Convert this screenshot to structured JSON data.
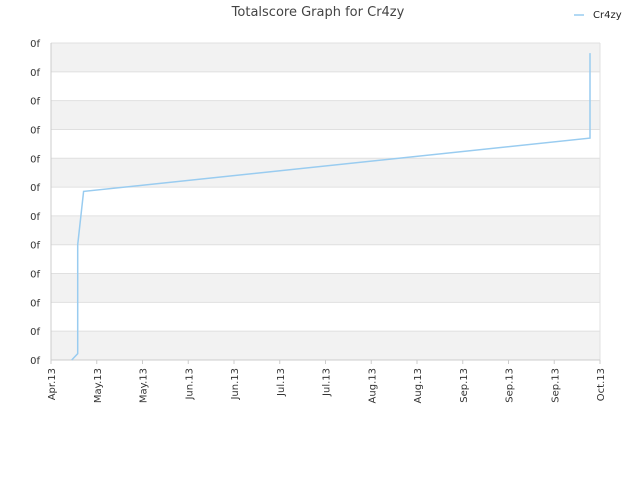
{
  "chart_data": {
    "type": "line",
    "title": "Totalscore Graph for Cr4zy",
    "xlabel": "",
    "ylabel": "",
    "y_tick_labels": [
      "0f",
      "0f",
      "0f",
      "0f",
      "0f",
      "0f",
      "0f",
      "0f",
      "0f",
      "0f",
      "0f",
      "0f"
    ],
    "x_tick_labels": [
      "Apr.13",
      "May.13",
      "May.13",
      "Jun.13",
      "Jun.13",
      "Jul.13",
      "Jul.13",
      "Aug.13",
      "Aug.13",
      "Sep.13",
      "Sep.13",
      "Sep.13",
      "Oct.13"
    ],
    "grid": true,
    "legend_position": "top-right",
    "series": [
      {
        "name": "Cr4zy",
        "color": "#99ccf0",
        "points": [
          {
            "x": "2013-04-08",
            "y": 0.0
          },
          {
            "x": "2013-04-10",
            "y": 0.22
          },
          {
            "x": "2013-04-10",
            "y": 4.0
          },
          {
            "x": "2013-04-12",
            "y": 5.85
          },
          {
            "x": "2013-09-30",
            "y": 7.7
          },
          {
            "x": "2013-09-30",
            "y": 10.65
          }
        ]
      }
    ]
  }
}
